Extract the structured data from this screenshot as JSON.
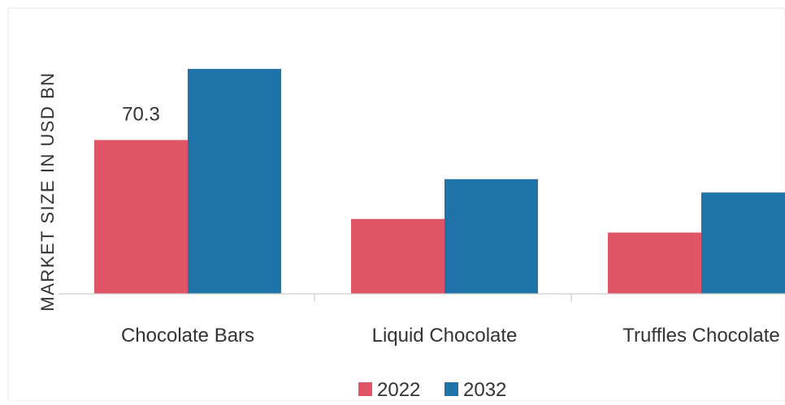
{
  "chart_data": {
    "type": "bar",
    "title": "",
    "xlabel": "",
    "ylabel": "MARKET SIZE IN USD BN",
    "categories": [
      "Chocolate Bars",
      "Liquid Chocolate",
      "Truffles Chocolate"
    ],
    "series": [
      {
        "name": "2022",
        "color": "#e05566",
        "values": [
          70.3,
          34.2,
          28.0
        ]
      },
      {
        "name": "2032",
        "color": "#1f73a8",
        "values": [
          102.8,
          52.4,
          46.3
        ]
      }
    ],
    "data_labels": [
      {
        "series": 0,
        "index": 0,
        "text": "70.3"
      }
    ],
    "ylim": [
      0,
      115
    ],
    "grid": false,
    "legend_position": "bottom-center",
    "colors": {
      "series_2022": "#e05566",
      "series_2032": "#1f73a8",
      "axis": "#cccccc",
      "text": "#333333"
    }
  }
}
